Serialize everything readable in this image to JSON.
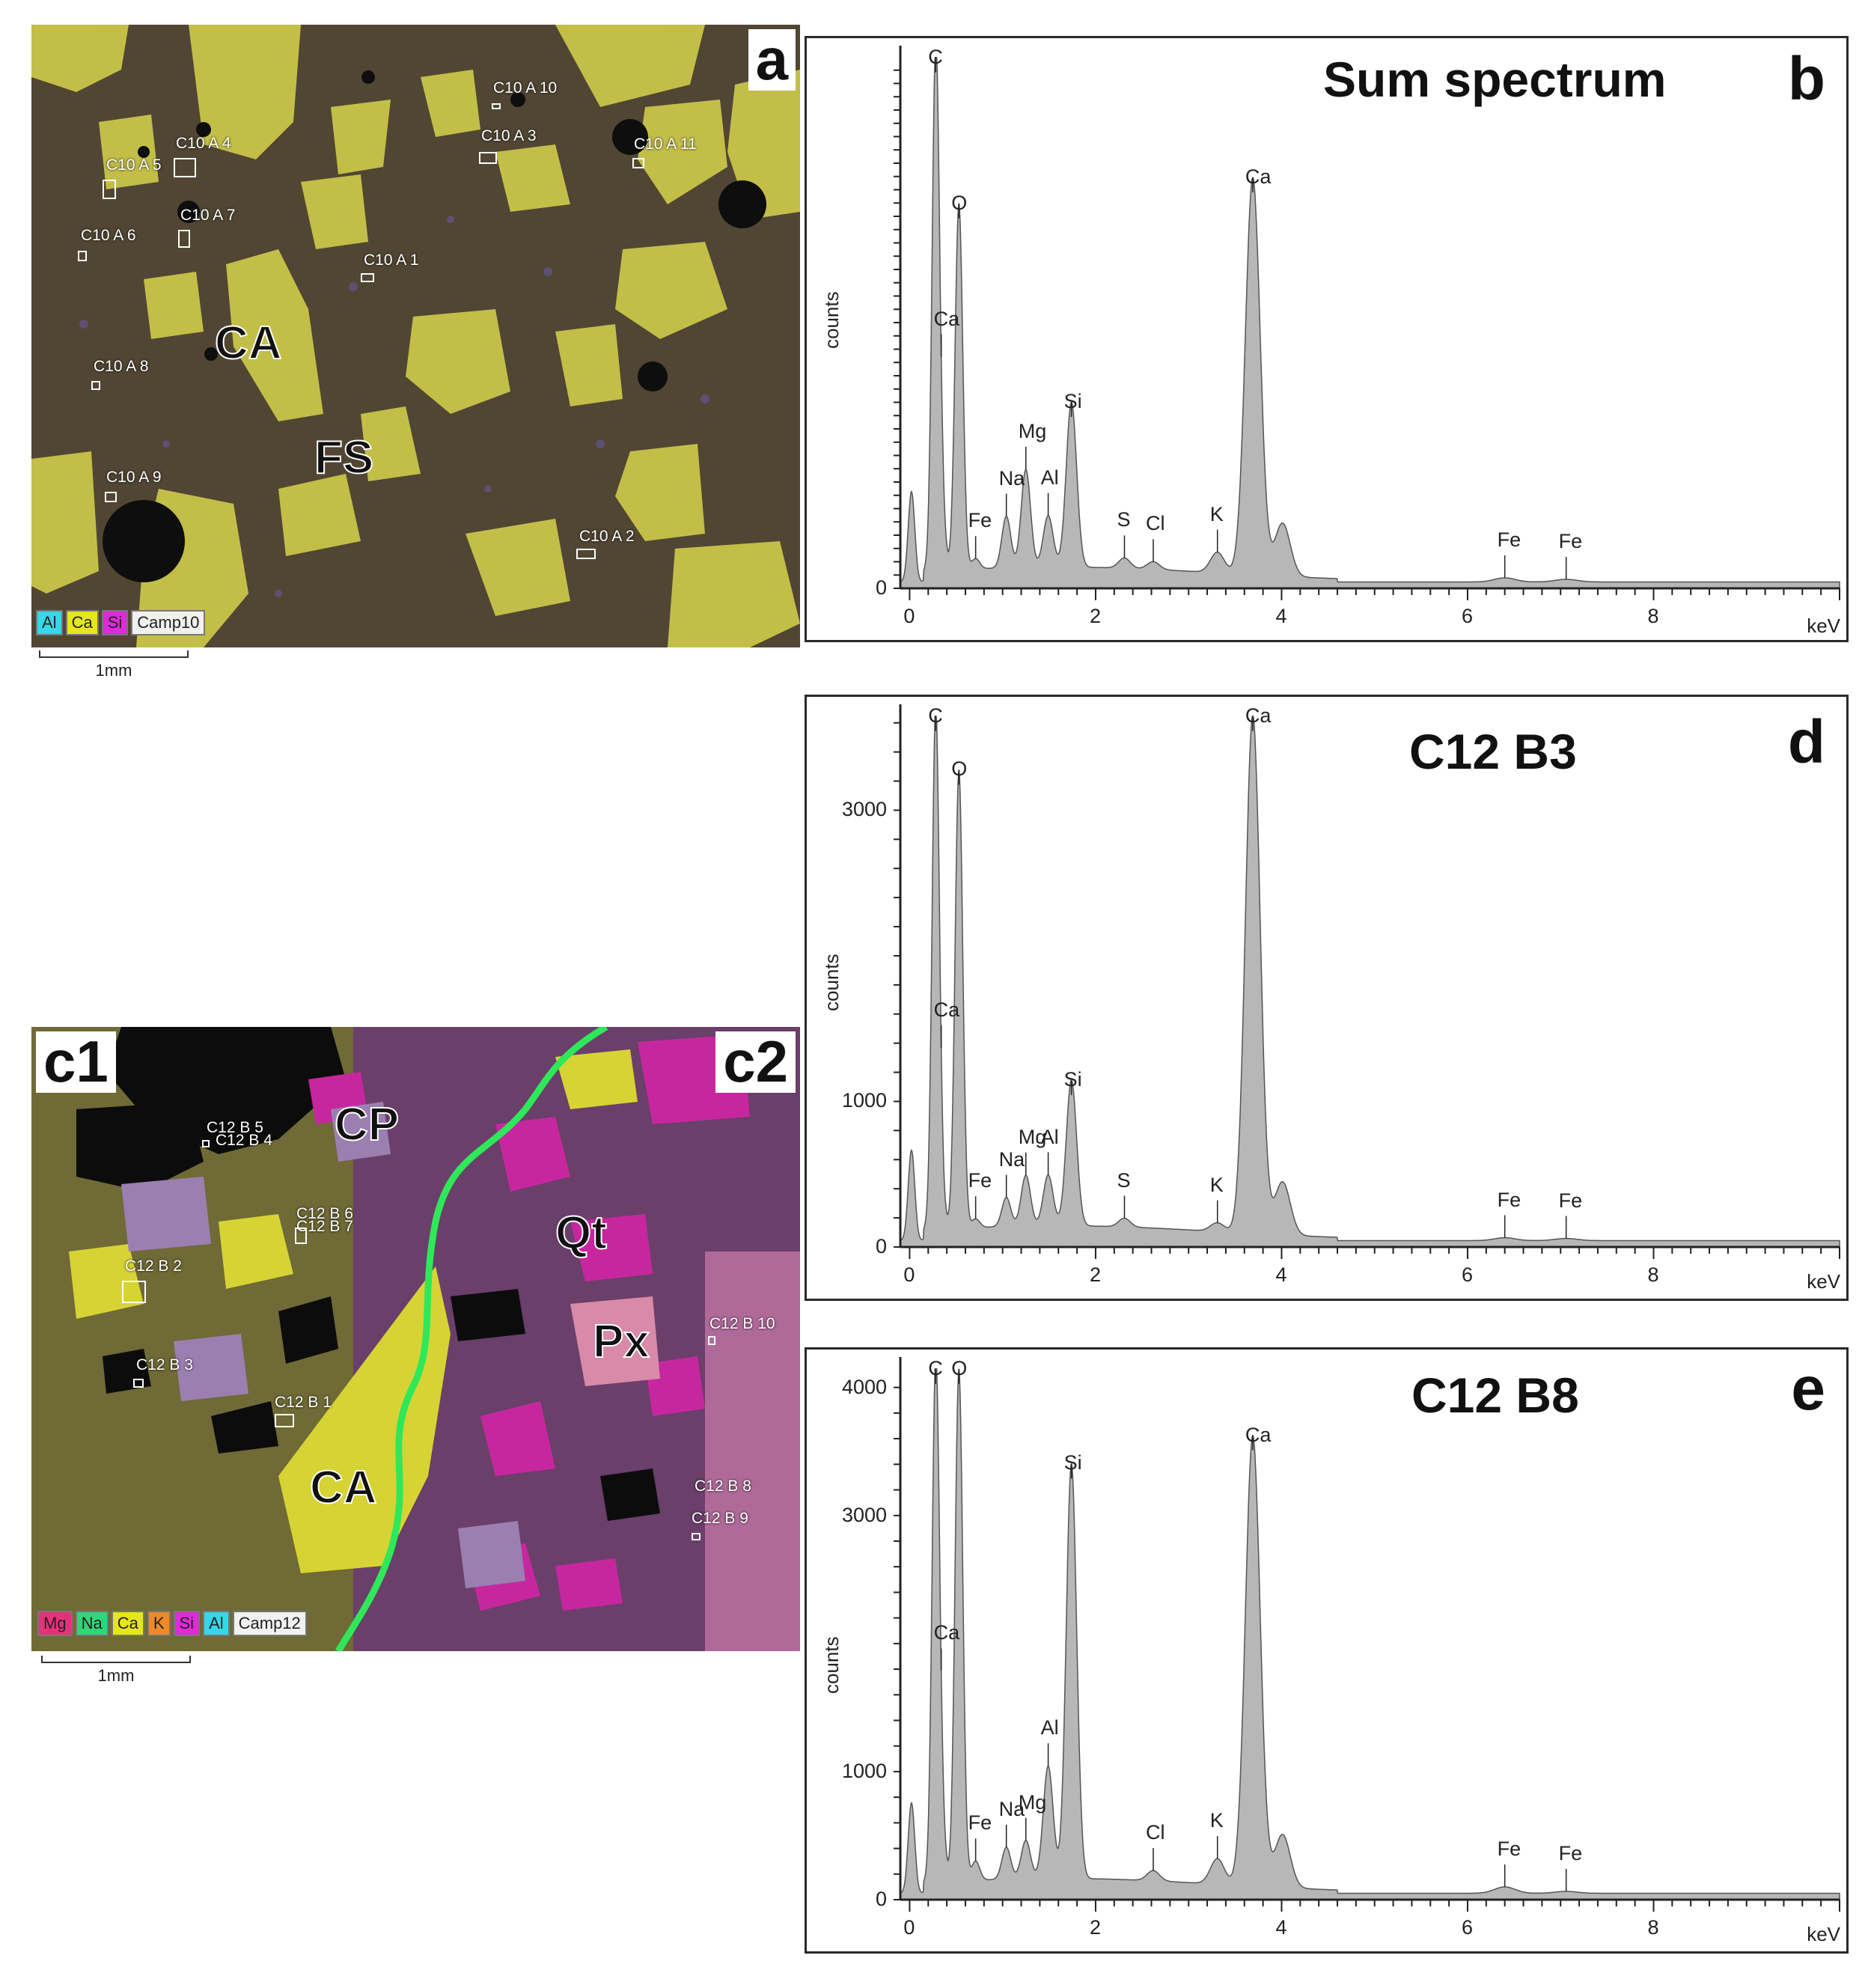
{
  "panel_a": {
    "letter": "a",
    "phases": [
      "CA",
      "FS"
    ],
    "spot_labels": [
      "C10 A 10",
      "C10 A 4",
      "C10 A 3",
      "C10 A 11",
      "C10 A 5",
      "C10 A 7",
      "C10 A 6",
      "C10 A 1",
      "C10 A 8",
      "C10 A 9",
      "C10 A 2"
    ],
    "legend": [
      "Al",
      "Ca",
      "Si",
      "Camp10"
    ],
    "legend_colors": [
      "#35d8e8",
      "#e6e61e",
      "#e02ad8"
    ],
    "scale_label": "1mm"
  },
  "panel_c": {
    "letters": [
      "c1",
      "c2"
    ],
    "phases": [
      "CP",
      "Qt",
      "Px",
      "CA"
    ],
    "spot_labels": [
      "C12 B 5",
      "C12 B 4",
      "C12 B 6",
      "C12 B 7",
      "C12 B 2",
      "C12 B 3",
      "C12 B 1",
      "C12 B 10",
      "C12 B 8",
      "C12 B 9"
    ],
    "legend": [
      "Mg",
      "Na",
      "Ca",
      "K",
      "Si",
      "Al",
      "Camp12"
    ],
    "legend_colors": [
      "#e8307a",
      "#2fd67a",
      "#e6e61e",
      "#ef8a2a",
      "#e02ad8",
      "#35d8e8"
    ],
    "boundary_color": "#2ee85a",
    "scale_label": "1mm"
  },
  "chart_data": [
    {
      "type": "area",
      "panel": "b",
      "title": "Sum spectrum",
      "xlabel": "keV",
      "ylabel": "counts",
      "xlim": [
        -0.1,
        10
      ],
      "x_ticks": [
        0,
        2,
        4,
        6,
        8
      ],
      "y_tick_labels": [
        "0"
      ],
      "peaks": [
        {
          "label": "C",
          "x": 0.28,
          "y": 1.0
        },
        {
          "label": "O",
          "x": 0.53,
          "y": 0.71
        },
        {
          "label": "Ca",
          "x": 0.34,
          "y": 0.12
        },
        {
          "label": "Fe",
          "x": 0.71,
          "y": 0.02
        },
        {
          "label": "Na",
          "x": 1.04,
          "y": 0.1
        },
        {
          "label": "Mg",
          "x": 1.25,
          "y": 0.19
        },
        {
          "label": "Al",
          "x": 1.49,
          "y": 0.1
        },
        {
          "label": "Si",
          "x": 1.74,
          "y": 0.32
        },
        {
          "label": "S",
          "x": 2.31,
          "y": 0.02
        },
        {
          "label": "Cl",
          "x": 2.62,
          "y": 0.015
        },
        {
          "label": "K",
          "x": 3.31,
          "y": 0.04
        },
        {
          "label": "Ca",
          "x": 3.69,
          "y": 0.77
        },
        {
          "label": "Fe",
          "x": 6.4,
          "y": 0.008
        },
        {
          "label": "Fe",
          "x": 7.06,
          "y": 0.005
        }
      ]
    },
    {
      "type": "area",
      "panel": "d",
      "title": "C12 B3",
      "xlabel": "keV",
      "ylabel": "counts",
      "xlim": [
        -0.1,
        10
      ],
      "ylim": [
        0,
        3600
      ],
      "x_ticks": [
        0,
        2,
        4,
        6,
        8
      ],
      "y_ticks": [
        0,
        1000,
        3000
      ],
      "peaks": [
        {
          "label": "C",
          "x": 0.28,
          "y": 3550
        },
        {
          "label": "O",
          "x": 0.53,
          "y": 3150
        },
        {
          "label": "Ca",
          "x": 0.34,
          "y": 200
        },
        {
          "label": "Fe",
          "x": 0.71,
          "y": 60
        },
        {
          "label": "Na",
          "x": 1.04,
          "y": 200
        },
        {
          "label": "Mg",
          "x": 1.25,
          "y": 350
        },
        {
          "label": "Al",
          "x": 1.49,
          "y": 350
        },
        {
          "label": "Si",
          "x": 1.74,
          "y": 1000
        },
        {
          "label": "S",
          "x": 2.31,
          "y": 60
        },
        {
          "label": "K",
          "x": 3.31,
          "y": 60
        },
        {
          "label": "Ca",
          "x": 3.69,
          "y": 3560
        },
        {
          "label": "Fe",
          "x": 6.4,
          "y": 20
        },
        {
          "label": "Fe",
          "x": 7.06,
          "y": 15
        }
      ]
    },
    {
      "type": "area",
      "panel": "e",
      "title": "C12 B8",
      "xlabel": "keV",
      "ylabel": "counts",
      "xlim": [
        -0.1,
        10
      ],
      "ylim": [
        0,
        4000
      ],
      "x_ticks": [
        0,
        2,
        4,
        6,
        8
      ],
      "y_ticks": [
        0,
        1000,
        3000,
        4000
      ],
      "peaks": [
        {
          "label": "C",
          "x": 0.28,
          "y": 4000
        },
        {
          "label": "O",
          "x": 0.53,
          "y": 4000
        },
        {
          "label": "Ca",
          "x": 0.34,
          "y": 470
        },
        {
          "label": "Fe",
          "x": 0.71,
          "y": 150
        },
        {
          "label": "Na",
          "x": 1.04,
          "y": 250
        },
        {
          "label": "Mg",
          "x": 1.25,
          "y": 300
        },
        {
          "label": "Al",
          "x": 1.49,
          "y": 880
        },
        {
          "label": "Si",
          "x": 1.74,
          "y": 3240
        },
        {
          "label": "Cl",
          "x": 2.62,
          "y": 80
        },
        {
          "label": "K",
          "x": 3.31,
          "y": 200
        },
        {
          "label": "Ca",
          "x": 3.69,
          "y": 3520
        },
        {
          "label": "Fe",
          "x": 6.4,
          "y": 50
        },
        {
          "label": "Fe",
          "x": 7.06,
          "y": 15
        }
      ]
    }
  ]
}
